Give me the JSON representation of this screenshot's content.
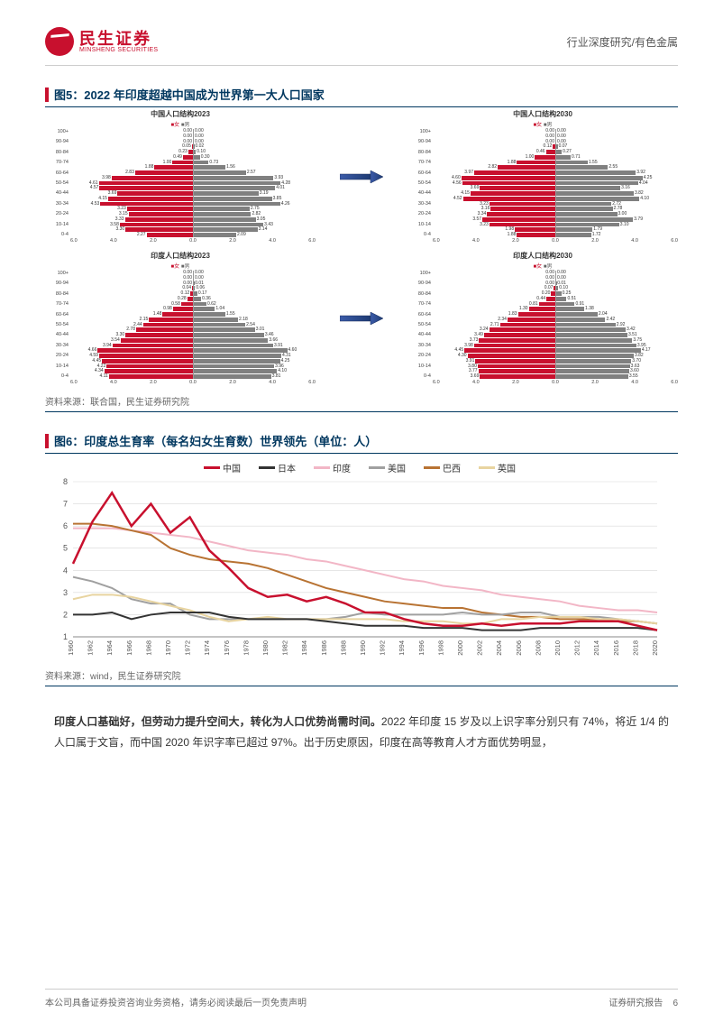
{
  "header": {
    "company_cn": "民生证券",
    "company_en": "MINSHENG SECURITIES",
    "category": "行业深度研究/有色金属"
  },
  "figure5": {
    "title": "图5：2022 年印度超越中国成为世界第一大人口国家",
    "source": "资料来源：联合国，民生证券研究院",
    "legend_f": "■女",
    "legend_m": "■男",
    "yaxis": [
      "100+",
      "90-94",
      "80-84",
      "70-74",
      "60-64",
      "50-54",
      "40-44",
      "30-34",
      "20-24",
      "10-14",
      "0-4"
    ],
    "ymid": [
      "95-99",
      "85-89",
      "75-79",
      "65-69",
      "55-59",
      "45-49",
      "35-39",
      "25-29",
      "15-19",
      "5-9"
    ],
    "xaxis": [
      "6.0",
      "4.0",
      "2.0",
      "0.0",
      "2.0",
      "4.0",
      "6.0"
    ],
    "pyramids": [
      {
        "title": "中国人口结构2023",
        "female": [
          0.0,
          0.0,
          0.0,
          0.05,
          0.23,
          0.49,
          1.0,
          1.88,
          2.83,
          3.98,
          4.61,
          4.57,
          3.69,
          4.15,
          4.53,
          3.23,
          3.15,
          3.33,
          3.58,
          3.3,
          2.27
        ],
        "male": [
          0.0,
          0.0,
          0.0,
          0.02,
          0.1,
          0.3,
          0.73,
          1.56,
          2.57,
          3.93,
          4.28,
          4.01,
          3.19,
          3.85,
          4.26,
          2.75,
          2.82,
          3.05,
          3.43,
          3.14,
          2.09
        ]
      },
      {
        "title": "中国人口结构2030",
        "female": [
          0.0,
          0.0,
          0.0,
          0.12,
          0.46,
          1.0,
          1.88,
          2.82,
          3.97,
          4.6,
          4.56,
          3.69,
          4.15,
          4.52,
          3.23,
          3.16,
          3.34,
          3.57,
          3.23,
          1.98,
          1.88
        ],
        "male": [
          0.0,
          0.0,
          0.0,
          0.07,
          0.27,
          0.71,
          1.55,
          2.55,
          3.92,
          4.25,
          4.04,
          3.16,
          3.82,
          4.1,
          2.72,
          2.78,
          3.0,
          3.79,
          3.1,
          1.79,
          1.72
        ]
      },
      {
        "title": "印度人口结构2023",
        "female": [
          0.0,
          0.0,
          0.0,
          0.04,
          0.12,
          0.28,
          0.58,
          0.98,
          1.48,
          2.15,
          2.44,
          2.78,
          3.3,
          3.54,
          3.94,
          4.66,
          4.59,
          4.45,
          4.22,
          4.34,
          4.11
        ],
        "male": [
          0.0,
          0.0,
          0.01,
          0.06,
          0.17,
          0.36,
          0.62,
          1.04,
          1.55,
          2.18,
          2.54,
          3.01,
          3.46,
          3.66,
          3.91,
          4.6,
          4.31,
          4.25,
          3.96,
          4.1,
          3.81
        ]
      },
      {
        "title": "印度人口结构2030",
        "female": [
          0.0,
          0.0,
          0.0,
          0.07,
          0.2,
          0.44,
          0.81,
          1.3,
          1.83,
          2.34,
          2.71,
          3.24,
          3.49,
          3.73,
          3.98,
          4.45,
          4.3,
          3.91,
          3.8,
          3.77,
          3.69
        ],
        "male": [
          0.0,
          0.0,
          0.01,
          0.1,
          0.25,
          0.51,
          0.91,
          1.38,
          2.04,
          2.42,
          2.92,
          3.42,
          3.51,
          3.75,
          3.95,
          4.17,
          3.82,
          3.7,
          3.63,
          3.6,
          3.55
        ]
      }
    ],
    "max_x": 6.0
  },
  "figure6": {
    "title": "图6：印度总生育率（每名妇女生育数）世界领先（单位：人）",
    "source": "资料来源：wind，民生证券研究院",
    "legend": [
      {
        "label": "中国",
        "color": "#c8102e"
      },
      {
        "label": "日本",
        "color": "#333333"
      },
      {
        "label": "印度",
        "color": "#f2b6c6"
      },
      {
        "label": "美国",
        "color": "#a0a0a0"
      },
      {
        "label": "巴西",
        "color": "#b87333"
      },
      {
        "label": "英国",
        "color": "#e8d4a0"
      }
    ],
    "years": [
      1960,
      1962,
      1964,
      1966,
      1968,
      1970,
      1972,
      1974,
      1976,
      1978,
      1980,
      1982,
      1984,
      1986,
      1988,
      1990,
      1992,
      1994,
      1996,
      1998,
      2000,
      2002,
      2004,
      2006,
      2008,
      2010,
      2012,
      2014,
      2016,
      2018,
      2020
    ],
    "series": {
      "china": [
        4.3,
        6.2,
        7.5,
        6.0,
        7.0,
        5.7,
        6.4,
        4.9,
        4.1,
        3.2,
        2.8,
        2.9,
        2.6,
        2.8,
        2.5,
        2.1,
        2.1,
        1.8,
        1.6,
        1.5,
        1.5,
        1.6,
        1.5,
        1.6,
        1.6,
        1.6,
        1.7,
        1.7,
        1.7,
        1.5,
        1.3
      ],
      "japan": [
        2.0,
        2.0,
        2.1,
        1.8,
        2.0,
        2.1,
        2.1,
        2.1,
        1.9,
        1.8,
        1.8,
        1.8,
        1.8,
        1.7,
        1.6,
        1.5,
        1.5,
        1.5,
        1.4,
        1.4,
        1.4,
        1.3,
        1.3,
        1.3,
        1.4,
        1.4,
        1.4,
        1.4,
        1.4,
        1.4,
        1.3
      ],
      "india": [
        5.9,
        5.9,
        5.9,
        5.8,
        5.7,
        5.6,
        5.5,
        5.3,
        5.1,
        4.9,
        4.8,
        4.7,
        4.5,
        4.4,
        4.2,
        4.0,
        3.8,
        3.6,
        3.5,
        3.3,
        3.2,
        3.1,
        2.9,
        2.8,
        2.7,
        2.6,
        2.4,
        2.3,
        2.2,
        2.2,
        2.1
      ],
      "usa": [
        3.7,
        3.5,
        3.2,
        2.7,
        2.5,
        2.5,
        2.0,
        1.8,
        1.8,
        1.8,
        1.8,
        1.8,
        1.8,
        1.8,
        1.9,
        2.1,
        2.0,
        2.0,
        2.0,
        2.0,
        2.1,
        2.0,
        2.0,
        2.1,
        2.1,
        1.9,
        1.9,
        1.9,
        1.8,
        1.7,
        1.6
      ],
      "brazil": [
        6.1,
        6.1,
        6.0,
        5.8,
        5.6,
        5.0,
        4.7,
        4.5,
        4.4,
        4.3,
        4.1,
        3.8,
        3.5,
        3.2,
        3.0,
        2.8,
        2.6,
        2.5,
        2.4,
        2.3,
        2.3,
        2.1,
        2.0,
        1.9,
        1.9,
        1.8,
        1.8,
        1.8,
        1.7,
        1.7,
        1.6
      ],
      "uk": [
        2.7,
        2.9,
        2.9,
        2.8,
        2.6,
        2.4,
        2.2,
        1.9,
        1.7,
        1.8,
        1.9,
        1.8,
        1.8,
        1.8,
        1.8,
        1.8,
        1.8,
        1.7,
        1.7,
        1.7,
        1.6,
        1.6,
        1.8,
        1.8,
        1.9,
        1.9,
        1.9,
        1.8,
        1.8,
        1.7,
        1.6
      ]
    },
    "y_range": [
      1,
      8
    ],
    "colors": {
      "grid": "#d8d8d8",
      "axis": "#888888"
    }
  },
  "body_text": {
    "p1_bold": "印度人口基础好，但劳动力提升空间大，转化为人口优势尚需时间。",
    "p1_rest": "2022 年印度 15 岁及以上识字率分别只有 74%，将近 1/4 的人口属于文盲，而中国 2020 年识字率已超过 97%。出于历史原因，印度在高等教育人才方面优势明显，"
  },
  "footer": {
    "left": "本公司具备证券投资咨询业务资格，请务必阅读最后一页免责声明",
    "right_label": "证券研究报告",
    "page": "6"
  }
}
